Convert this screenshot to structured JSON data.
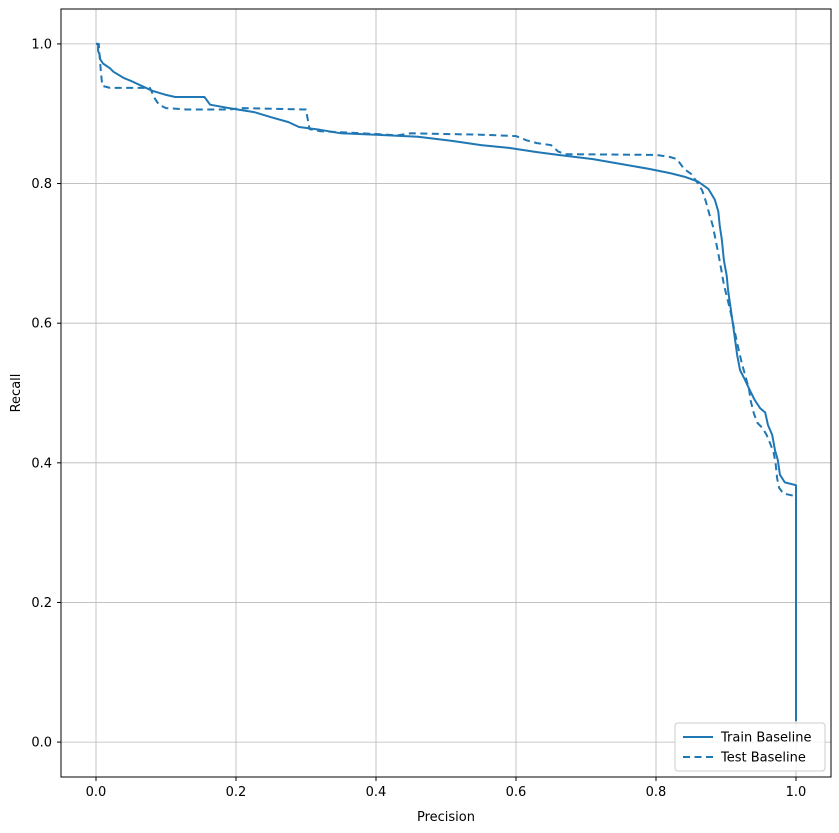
{
  "chart_data": {
    "type": "line",
    "title": "",
    "xlabel": "Precision",
    "ylabel": "Recall",
    "xlim": [
      -0.05,
      1.05
    ],
    "ylim": [
      -0.05,
      1.05
    ],
    "xticks": [
      0.0,
      0.2,
      0.4,
      0.6,
      0.8,
      1.0
    ],
    "yticks": [
      0.0,
      0.2,
      0.4,
      0.6,
      0.8,
      1.0
    ],
    "grid": true,
    "grid_color": "#b8b8b8",
    "line_color": "#1f77b4",
    "legend_position": "lower right",
    "series": [
      {
        "name": "Train Baseline",
        "style": "solid",
        "points": [
          [
            0.0,
            1.0
          ],
          [
            0.003,
            1.0
          ],
          [
            0.003,
            0.99
          ],
          [
            0.005,
            0.985
          ],
          [
            0.006,
            0.978
          ],
          [
            0.01,
            0.972
          ],
          [
            0.02,
            0.965
          ],
          [
            0.025,
            0.96
          ],
          [
            0.04,
            0.951
          ],
          [
            0.05,
            0.947
          ],
          [
            0.065,
            0.94
          ],
          [
            0.08,
            0.933
          ],
          [
            0.1,
            0.927
          ],
          [
            0.113,
            0.924
          ],
          [
            0.155,
            0.924
          ],
          [
            0.163,
            0.913
          ],
          [
            0.19,
            0.908
          ],
          [
            0.227,
            0.902
          ],
          [
            0.25,
            0.895
          ],
          [
            0.275,
            0.888
          ],
          [
            0.29,
            0.881
          ],
          [
            0.32,
            0.877
          ],
          [
            0.35,
            0.872
          ],
          [
            0.4,
            0.87
          ],
          [
            0.46,
            0.867
          ],
          [
            0.51,
            0.861
          ],
          [
            0.55,
            0.855
          ],
          [
            0.59,
            0.851
          ],
          [
            0.63,
            0.845
          ],
          [
            0.66,
            0.841
          ],
          [
            0.71,
            0.835
          ],
          [
            0.75,
            0.828
          ],
          [
            0.79,
            0.821
          ],
          [
            0.82,
            0.815
          ],
          [
            0.84,
            0.81
          ],
          [
            0.86,
            0.803
          ],
          [
            0.875,
            0.792
          ],
          [
            0.884,
            0.777
          ],
          [
            0.889,
            0.76
          ],
          [
            0.891,
            0.74
          ],
          [
            0.894,
            0.72
          ],
          [
            0.897,
            0.69
          ],
          [
            0.901,
            0.668
          ],
          [
            0.903,
            0.647
          ],
          [
            0.906,
            0.626
          ],
          [
            0.909,
            0.605
          ],
          [
            0.913,
            0.576
          ],
          [
            0.916,
            0.554
          ],
          [
            0.92,
            0.533
          ],
          [
            0.927,
            0.519
          ],
          [
            0.934,
            0.504
          ],
          [
            0.941,
            0.49
          ],
          [
            0.949,
            0.478
          ],
          [
            0.956,
            0.472
          ],
          [
            0.96,
            0.454
          ],
          [
            0.966,
            0.44
          ],
          [
            0.97,
            0.418
          ],
          [
            0.974,
            0.404
          ],
          [
            0.977,
            0.383
          ],
          [
            0.984,
            0.372
          ],
          [
            1.0,
            0.368
          ],
          [
            1.0,
            0.03
          ]
        ]
      },
      {
        "name": "Test Baseline",
        "style": "dashed",
        "points": [
          [
            0.0,
            1.0
          ],
          [
            0.004,
            1.0
          ],
          [
            0.005,
            0.985
          ],
          [
            0.007,
            0.96
          ],
          [
            0.009,
            0.94
          ],
          [
            0.02,
            0.937
          ],
          [
            0.077,
            0.937
          ],
          [
            0.084,
            0.922
          ],
          [
            0.09,
            0.913
          ],
          [
            0.1,
            0.908
          ],
          [
            0.13,
            0.906
          ],
          [
            0.19,
            0.906
          ],
          [
            0.21,
            0.908
          ],
          [
            0.3,
            0.906
          ],
          [
            0.305,
            0.878
          ],
          [
            0.32,
            0.875
          ],
          [
            0.4,
            0.871
          ],
          [
            0.43,
            0.869
          ],
          [
            0.45,
            0.872
          ],
          [
            0.55,
            0.87
          ],
          [
            0.6,
            0.868
          ],
          [
            0.615,
            0.862
          ],
          [
            0.63,
            0.858
          ],
          [
            0.65,
            0.855
          ],
          [
            0.66,
            0.846
          ],
          [
            0.67,
            0.842
          ],
          [
            0.8,
            0.841
          ],
          [
            0.82,
            0.838
          ],
          [
            0.83,
            0.835
          ],
          [
            0.84,
            0.821
          ],
          [
            0.85,
            0.814
          ],
          [
            0.86,
            0.8
          ],
          [
            0.866,
            0.79
          ],
          [
            0.871,
            0.775
          ],
          [
            0.876,
            0.757
          ],
          [
            0.881,
            0.74
          ],
          [
            0.885,
            0.72
          ],
          [
            0.889,
            0.7
          ],
          [
            0.893,
            0.678
          ],
          [
            0.897,
            0.655
          ],
          [
            0.902,
            0.635
          ],
          [
            0.907,
            0.614
          ],
          [
            0.912,
            0.59
          ],
          [
            0.917,
            0.567
          ],
          [
            0.922,
            0.545
          ],
          [
            0.928,
            0.523
          ],
          [
            0.933,
            0.505
          ],
          [
            0.935,
            0.49
          ],
          [
            0.94,
            0.47
          ],
          [
            0.945,
            0.457
          ],
          [
            0.952,
            0.45
          ],
          [
            0.958,
            0.44
          ],
          [
            0.963,
            0.428
          ],
          [
            0.968,
            0.415
          ],
          [
            0.971,
            0.398
          ],
          [
            0.973,
            0.378
          ],
          [
            0.976,
            0.364
          ],
          [
            0.982,
            0.356
          ],
          [
            1.0,
            0.352
          ],
          [
            1.0,
            0.03
          ]
        ]
      }
    ]
  }
}
